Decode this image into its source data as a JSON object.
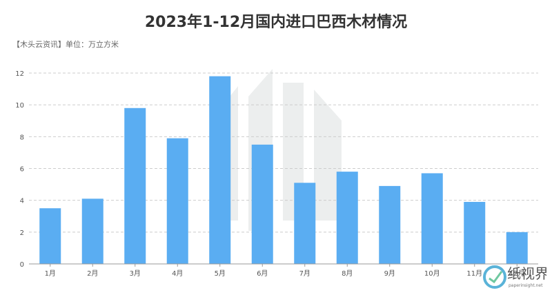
{
  "title": "2023年1-12月国内进口巴西木材情况",
  "subtitle": "【木头云资讯】单位：万立方米",
  "watermark": {
    "text": "纸视界",
    "url": "paperinsight.net"
  },
  "colors": {
    "bar": "#5AADF2",
    "grid": "#CCCCCC",
    "axis": "#999999",
    "tick": "#555555"
  },
  "chart_data": {
    "type": "bar",
    "categories": [
      "1月",
      "2月",
      "3月",
      "4月",
      "5月",
      "6月",
      "7月",
      "8月",
      "9月",
      "10月",
      "11月",
      "12月"
    ],
    "values": [
      3.5,
      4.1,
      9.8,
      7.9,
      11.8,
      7.5,
      5.1,
      5.8,
      4.9,
      5.7,
      3.9,
      2.0
    ],
    "yticks": [
      0,
      2,
      4,
      6,
      8,
      10,
      12
    ],
    "ylim": [
      0,
      12
    ],
    "title": "2023年1-12月国内进口巴西木材情况",
    "xlabel": "",
    "ylabel": "",
    "grid": true
  }
}
